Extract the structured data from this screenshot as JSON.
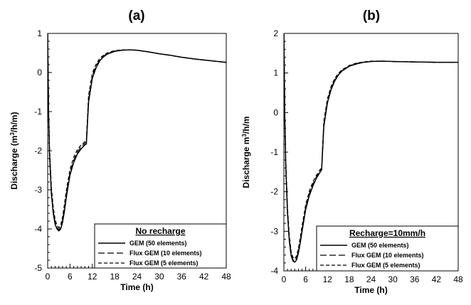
{
  "chart_data": [
    {
      "type": "line",
      "title": "(a)",
      "xlabel": "Time (h)",
      "ylabel": "Discharge (m³/h/m)",
      "xlim": [
        0,
        48
      ],
      "ylim": [
        -5,
        1
      ],
      "x_ticks": [
        "0",
        "6",
        "12",
        "18",
        "24",
        "30",
        "36",
        "42",
        "48"
      ],
      "y_ticks": [
        "-5",
        "-4",
        "-3",
        "-2",
        "-1",
        "0",
        "1"
      ],
      "grid": false,
      "legend": {
        "title": "No recharge",
        "position": "bottom-right",
        "entries": [
          "GEM (50 elements)",
          "Flux GEM (10 elements)",
          "Flux GEM (5 elements)"
        ]
      },
      "series": [
        {
          "name": "GEM (50 elements)",
          "line_style": "solid",
          "x": [
            0,
            0.25,
            0.5,
            1,
            1.5,
            2,
            2.5,
            3,
            3.5,
            4,
            4.5,
            5,
            6,
            7,
            8,
            9,
            10,
            10.4,
            11,
            12,
            13,
            14,
            15,
            16,
            18,
            20,
            22,
            24,
            27,
            30,
            33,
            36,
            40,
            44,
            48
          ],
          "y": [
            1.0,
            -1.1,
            -2.1,
            -3.1,
            -3.6,
            -3.88,
            -4.0,
            -4.05,
            -4.0,
            -3.83,
            -3.55,
            -3.2,
            -2.62,
            -2.3,
            -2.08,
            -1.95,
            -1.85,
            -1.83,
            -0.75,
            -0.15,
            0.12,
            0.3,
            0.4,
            0.47,
            0.54,
            0.57,
            0.58,
            0.57,
            0.53,
            0.48,
            0.44,
            0.39,
            0.34,
            0.3,
            0.26
          ]
        },
        {
          "name": "Flux GEM (10 elements)",
          "line_style": "long-dash",
          "x": [
            0,
            0.25,
            0.5,
            1,
            1.5,
            2,
            2.5,
            3,
            3.5,
            4,
            4.5,
            5,
            6,
            7,
            8,
            9,
            10,
            10.4,
            11,
            12,
            13,
            14,
            15,
            16,
            18,
            20,
            22,
            24,
            27,
            30,
            33,
            36,
            40,
            44,
            48
          ],
          "y": [
            1.0,
            -1.05,
            -2.05,
            -3.05,
            -3.55,
            -3.84,
            -3.97,
            -4.02,
            -3.96,
            -3.78,
            -3.48,
            -3.13,
            -2.57,
            -2.25,
            -2.03,
            -1.9,
            -1.81,
            -1.79,
            -0.68,
            -0.09,
            0.16,
            0.33,
            0.42,
            0.48,
            0.55,
            0.57,
            0.58,
            0.57,
            0.53,
            0.48,
            0.44,
            0.39,
            0.34,
            0.3,
            0.26
          ]
        },
        {
          "name": "Flux GEM (5 elements)",
          "line_style": "short-dash",
          "x": [
            0,
            0.25,
            0.5,
            1,
            1.5,
            2,
            2.5,
            3,
            3.5,
            4,
            4.5,
            5,
            6,
            7,
            8,
            9,
            10,
            10.4,
            11,
            12,
            13,
            14,
            15,
            16,
            18,
            20,
            22,
            24,
            27,
            30,
            33,
            36,
            40,
            44,
            48
          ],
          "y": [
            1.0,
            -0.95,
            -1.95,
            -2.95,
            -3.45,
            -3.76,
            -3.91,
            -3.97,
            -3.9,
            -3.7,
            -3.38,
            -3.03,
            -2.48,
            -2.17,
            -1.97,
            -1.85,
            -1.77,
            -1.75,
            -0.58,
            -0.02,
            0.21,
            0.36,
            0.44,
            0.5,
            0.56,
            0.58,
            0.58,
            0.57,
            0.53,
            0.48,
            0.44,
            0.39,
            0.34,
            0.3,
            0.26
          ]
        }
      ]
    },
    {
      "type": "line",
      "title": "(b)",
      "xlabel": "Time (h)",
      "ylabel": "Discharge m³/h/m",
      "xlim": [
        0,
        48
      ],
      "ylim": [
        -4,
        2
      ],
      "x_ticks": [
        "0",
        "6",
        "12",
        "18",
        "24",
        "30",
        "36",
        "42",
        "48"
      ],
      "y_ticks": [
        "-4",
        "-3",
        "-2",
        "-1",
        "0",
        "1",
        "2"
      ],
      "grid": false,
      "legend": {
        "title": "Recharge=10mm/h",
        "position": "bottom-right",
        "entries": [
          "GEM (50 elements)",
          "Flux GEM (10 elements)",
          "Flux GEM (5 elements)"
        ]
      },
      "series": [
        {
          "name": "GEM (50 elements)",
          "line_style": "solid",
          "x": [
            0,
            0.25,
            0.5,
            1,
            1.5,
            2,
            2.5,
            3,
            3.5,
            4,
            4.5,
            5,
            6,
            7,
            8,
            9,
            10,
            10.4,
            11,
            12,
            13,
            14,
            15,
            16,
            18,
            20,
            22,
            24,
            27,
            30,
            36,
            42,
            48
          ],
          "y": [
            2.0,
            -0.1,
            -1.3,
            -2.55,
            -3.25,
            -3.62,
            -3.75,
            -3.78,
            -3.72,
            -3.55,
            -3.3,
            -3.0,
            -2.45,
            -2.1,
            -1.85,
            -1.65,
            -1.5,
            -1.45,
            -0.35,
            0.25,
            0.58,
            0.8,
            0.95,
            1.05,
            1.17,
            1.23,
            1.27,
            1.29,
            1.3,
            1.29,
            1.28,
            1.27,
            1.27
          ]
        },
        {
          "name": "Flux GEM (10 elements)",
          "line_style": "long-dash",
          "x": [
            0,
            0.25,
            0.5,
            1,
            1.5,
            2,
            2.5,
            3,
            3.5,
            4,
            4.5,
            5,
            6,
            7,
            8,
            9,
            10,
            10.4,
            11,
            12,
            13,
            14,
            15,
            16,
            18,
            20,
            22,
            24,
            27,
            30,
            36,
            42,
            48
          ],
          "y": [
            2.0,
            -0.05,
            -1.25,
            -2.5,
            -3.2,
            -3.58,
            -3.72,
            -3.75,
            -3.68,
            -3.5,
            -3.25,
            -2.95,
            -2.4,
            -2.05,
            -1.8,
            -1.62,
            -1.47,
            -1.42,
            -0.3,
            0.29,
            0.61,
            0.82,
            0.96,
            1.06,
            1.18,
            1.24,
            1.27,
            1.29,
            1.3,
            1.29,
            1.28,
            1.27,
            1.27
          ]
        },
        {
          "name": "Flux GEM (5 elements)",
          "line_style": "short-dash",
          "x": [
            0,
            0.25,
            0.5,
            1,
            1.5,
            2,
            2.5,
            3,
            3.5,
            4,
            4.5,
            5,
            6,
            7,
            8,
            9,
            10,
            10.4,
            11,
            12,
            13,
            14,
            15,
            16,
            18,
            20,
            22,
            24,
            27,
            30,
            36,
            42,
            48
          ],
          "y": [
            2.0,
            0.05,
            -1.15,
            -2.42,
            -3.12,
            -3.52,
            -3.66,
            -3.7,
            -3.62,
            -3.43,
            -3.17,
            -2.87,
            -2.33,
            -1.99,
            -1.75,
            -1.58,
            -1.44,
            -1.39,
            -0.22,
            0.35,
            0.66,
            0.86,
            0.99,
            1.08,
            1.19,
            1.25,
            1.28,
            1.3,
            1.3,
            1.29,
            1.28,
            1.27,
            1.27
          ]
        }
      ]
    }
  ]
}
